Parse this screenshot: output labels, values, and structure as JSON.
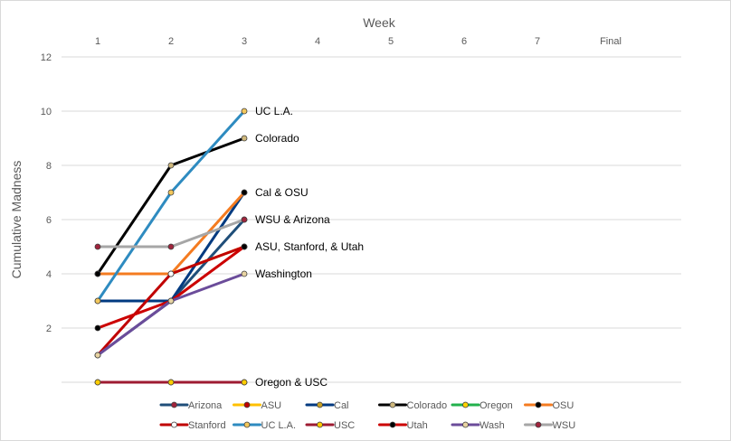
{
  "chart_data": {
    "type": "line",
    "title": "",
    "xlabel": "Week",
    "ylabel": "Cumulative Madness",
    "x_categories": [
      "1",
      "2",
      "3",
      "4",
      "5",
      "6",
      "7",
      "Final"
    ],
    "ylim": [
      0,
      12
    ],
    "yticks": [
      2,
      4,
      6,
      8,
      10,
      12
    ],
    "grid": true,
    "legend_position": "bottom",
    "series": [
      {
        "name": "Arizona",
        "values": [
          1,
          3,
          6
        ],
        "line_color": "#1f4e79",
        "marker_color": "#a0243c"
      },
      {
        "name": "ASU",
        "values": [
          4,
          4,
          5
        ],
        "line_color": "#ffc000",
        "marker_color": "#c00000"
      },
      {
        "name": "Cal",
        "values": [
          3,
          3,
          7
        ],
        "line_color": "#003a80",
        "marker_color": "#c9a227"
      },
      {
        "name": "Colorado",
        "values": [
          4,
          8,
          9
        ],
        "line_color": "#000000",
        "marker_color": "#cfb87c"
      },
      {
        "name": "Oregon",
        "values": [
          0,
          0,
          0
        ],
        "line_color": "#22b14c",
        "marker_color": "#ffd200"
      },
      {
        "name": "OSU",
        "values": [
          4,
          4,
          7
        ],
        "line_color": "#f47b20",
        "marker_color": "#000000"
      },
      {
        "name": "Stanford",
        "values": [
          1,
          4,
          5
        ],
        "line_color": "#c00000",
        "marker_color": "#ffffff"
      },
      {
        "name": "UC L.A.",
        "values": [
          3,
          7,
          10
        ],
        "line_color": "#2e8bc0",
        "marker_color": "#f2c75c"
      },
      {
        "name": "USC",
        "values": [
          0,
          0,
          0
        ],
        "line_color": "#9e1b32",
        "marker_color": "#ffcc00"
      },
      {
        "name": "Utah",
        "values": [
          2,
          3,
          5
        ],
        "line_color": "#cc0000",
        "marker_color": "#000000"
      },
      {
        "name": "Wash",
        "values": [
          1,
          3,
          4
        ],
        "line_color": "#6b4c9a",
        "marker_color": "#e8d3a2"
      },
      {
        "name": "WSU",
        "values": [
          5,
          5,
          6
        ],
        "line_color": "#a6a6a6",
        "marker_color": "#a0243c"
      }
    ],
    "end_labels": [
      {
        "text": "UC L.A.",
        "y": 10
      },
      {
        "text": "Colorado",
        "y": 9
      },
      {
        "text": "Cal & OSU",
        "y": 7
      },
      {
        "text": "WSU & Arizona",
        "y": 6
      },
      {
        "text": "ASU, Stanford, & Utah",
        "y": 5
      },
      {
        "text": "Washington",
        "y": 4
      },
      {
        "text": "Oregon & USC",
        "y": 0
      }
    ]
  }
}
